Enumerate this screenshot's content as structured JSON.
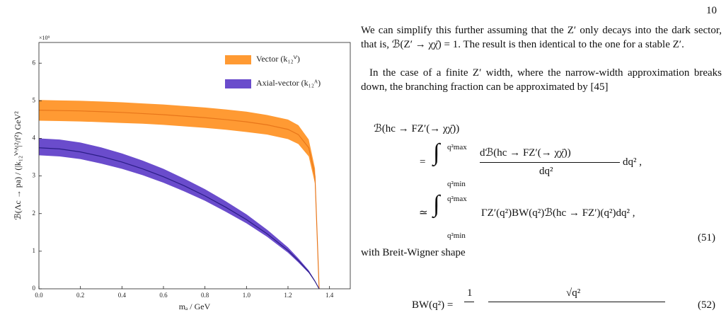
{
  "page_number": "10",
  "chart_data": {
    "type": "band",
    "x": [
      0,
      0.1,
      0.2,
      0.3,
      0.4,
      0.5,
      0.6,
      0.7,
      0.8,
      0.9,
      1.0,
      1.1,
      1.2,
      1.25,
      1.3,
      1.33,
      1.35
    ],
    "series": [
      {
        "name": "Vector (k₁₂ⱽ)",
        "color": "#ff9a33",
        "line_color": "#e8761a",
        "values": [
          4.75,
          4.74,
          4.73,
          4.71,
          4.69,
          4.66,
          4.63,
          4.59,
          4.55,
          4.5,
          4.44,
          4.36,
          4.24,
          4.1,
          3.75,
          3.0,
          0
        ],
        "upper": [
          5.02,
          5.01,
          5.0,
          4.98,
          4.96,
          4.93,
          4.9,
          4.86,
          4.82,
          4.77,
          4.71,
          4.62,
          4.5,
          4.35,
          3.97,
          3.2,
          0
        ],
        "lower": [
          4.47,
          4.46,
          4.45,
          4.43,
          4.41,
          4.39,
          4.36,
          4.32,
          4.28,
          4.23,
          4.17,
          4.1,
          3.98,
          3.85,
          3.52,
          2.8,
          0
        ]
      },
      {
        "name": "Axial-vector (k₁₂ᴬ)",
        "color": "#6a4ccc",
        "line_color": "#2b1d86",
        "values": [
          3.75,
          3.72,
          3.64,
          3.52,
          3.37,
          3.19,
          2.98,
          2.74,
          2.47,
          2.17,
          1.84,
          1.46,
          1.02,
          0.75,
          0.45,
          0.2,
          0
        ],
        "upper": [
          4.0,
          3.97,
          3.89,
          3.76,
          3.6,
          3.41,
          3.19,
          2.93,
          2.65,
          2.33,
          1.98,
          1.57,
          1.1,
          0.81,
          0.49,
          0.22,
          0
        ],
        "lower": [
          3.55,
          3.52,
          3.45,
          3.33,
          3.19,
          3.02,
          2.82,
          2.59,
          2.34,
          2.05,
          1.74,
          1.38,
          0.96,
          0.7,
          0.42,
          0.19,
          0
        ]
      }
    ],
    "xlabel": "mₐ / GeV",
    "ylabel": "ℬ(Λc → pa) / (|k₁₂ⱽ'ᴬ|²/f²) GeV²",
    "y_offset_label": "×10⁹",
    "xlim": [
      0,
      1.5
    ],
    "xticks": [
      {
        "value": 0,
        "label": "0.0"
      },
      {
        "value": 0.2,
        "label": "0.2"
      },
      {
        "value": 0.4,
        "label": "0.4"
      },
      {
        "value": 0.6,
        "label": "0.6"
      },
      {
        "value": 0.8,
        "label": "0.8"
      },
      {
        "value": 1.0,
        "label": "1.0"
      },
      {
        "value": 1.2,
        "label": "1.2"
      },
      {
        "value": 1.4,
        "label": "1.4"
      }
    ],
    "ylim": [
      0,
      6.55
    ],
    "yticks": [
      0,
      1,
      2,
      3,
      4,
      5,
      6
    ],
    "legend": "upper right"
  },
  "paragraphs": [
    "We can simplify this further assuming that the Z′ only decays into the dark sector, that is, ℬ(Z′ → χχ̄) = 1. The result is then identical to the one for a stable Z′.",
    "In the case of a finite Z′ width, where the narrow-width approximation breaks down, the branching fraction can be approximated by [45]",
    "with Breit-Wigner shape"
  ],
  "equation_51": {
    "lhs": "ℬ(hc → FZ′(→ χχ̄))",
    "eq1_rel": "=",
    "limit_upper": "q²max",
    "limit_lower": "q²min",
    "eq1_numerator": "dℬ(hc → FZ′(→ χχ̄))",
    "eq1_denominator": "dq²",
    "eq1_tail": "dq² ,",
    "eq2_rel": "≃",
    "eq2_body": "ΓZ′(q²)BW(q²)ℬ(hc → FZ′)(q²)dq² ,",
    "number": "(51)"
  },
  "equation_52": {
    "lhs": "BW(q²) =",
    "numerator_1": "1",
    "numerator_2": "√q²",
    "number": "(52)"
  }
}
